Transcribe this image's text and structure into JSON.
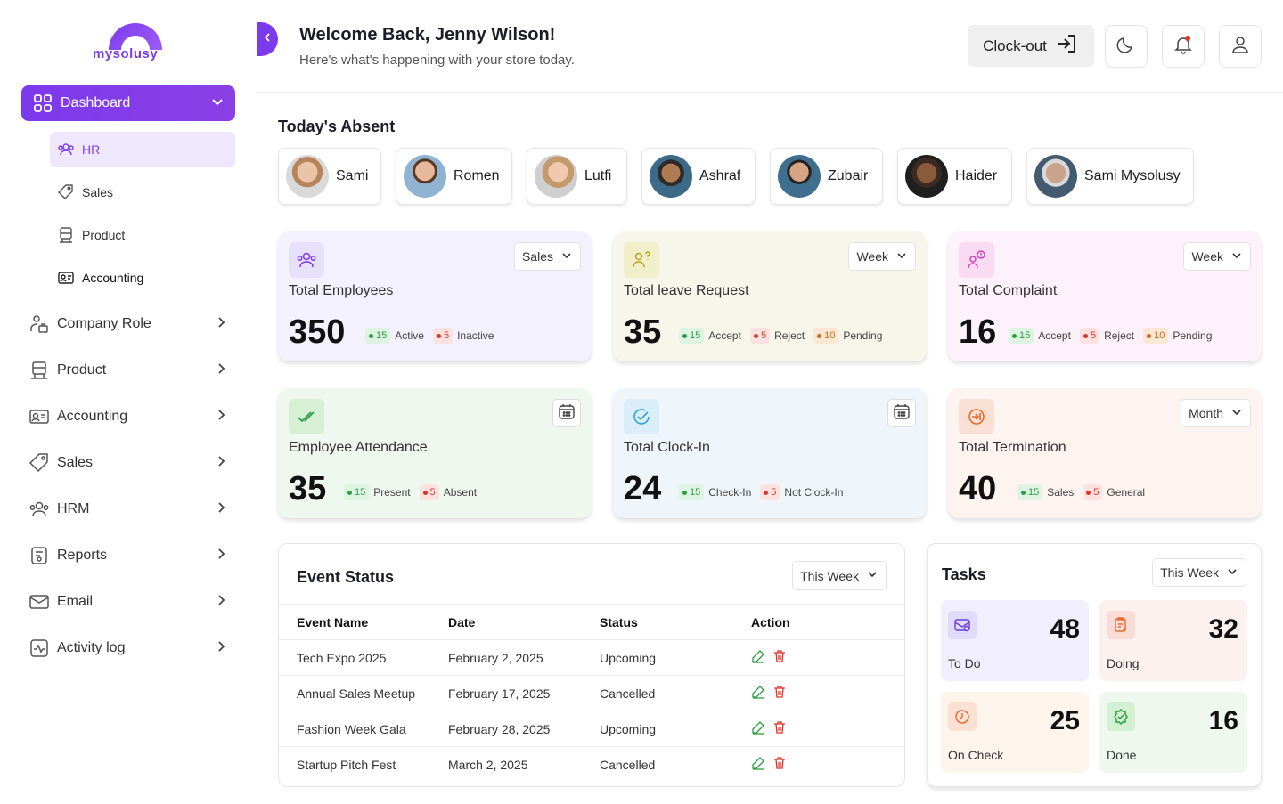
{
  "brand": {
    "name": "mysolusy"
  },
  "sidebar": {
    "dashboard": "Dashboard",
    "subitems": [
      {
        "label": "HR",
        "icon": "users-icon"
      },
      {
        "label": "Sales",
        "icon": "tag-icon"
      },
      {
        "label": "Product",
        "icon": "product-icon"
      },
      {
        "label": "Accounting",
        "icon": "id-card-icon"
      }
    ],
    "items": [
      {
        "label": "Company Role",
        "icon": "company-role-icon"
      },
      {
        "label": "Product",
        "icon": "product-icon"
      },
      {
        "label": "Accounting",
        "icon": "id-card-icon"
      },
      {
        "label": "Sales",
        "icon": "tag-icon"
      },
      {
        "label": "HRM",
        "icon": "users-icon"
      },
      {
        "label": "Reports",
        "icon": "report-icon"
      },
      {
        "label": "Email",
        "icon": "mail-icon"
      },
      {
        "label": "Activity log",
        "icon": "activity-icon"
      }
    ]
  },
  "header": {
    "title": "Welcome Back, Jenny Wilson!",
    "subtitle": "Here's what's happening with your store today.",
    "clockout": "Clock-out"
  },
  "absent": {
    "title": "Today's Absent",
    "people": [
      "Sami",
      "Romen",
      "Lutfi",
      "Ashraf",
      "Zubair",
      "Haider",
      "Sami Mysolusy"
    ]
  },
  "cards": [
    {
      "title": "Total Employees",
      "value": "350",
      "select": "Sales",
      "badges": [
        {
          "n": "15",
          "label": "Active"
        },
        {
          "n": "5",
          "label": "Inactive"
        }
      ]
    },
    {
      "title": "Total leave Request",
      "value": "35",
      "select": "Week",
      "badges": [
        {
          "n": "15",
          "label": "Accept"
        },
        {
          "n": "5",
          "label": "Reject"
        },
        {
          "n": "10",
          "label": "Pending"
        }
      ]
    },
    {
      "title": "Total Complaint",
      "value": "16",
      "select": "Week",
      "badges": [
        {
          "n": "15",
          "label": "Accept"
        },
        {
          "n": "5",
          "label": "Reject"
        },
        {
          "n": "10",
          "label": "Pending"
        }
      ]
    },
    {
      "title": "Employee Attendance",
      "value": "35",
      "badges": [
        {
          "n": "15",
          "label": "Present"
        },
        {
          "n": "5",
          "label": "Absent"
        }
      ]
    },
    {
      "title": "Total Clock-In",
      "value": "24",
      "badges": [
        {
          "n": "15",
          "label": "Check-In"
        },
        {
          "n": "5",
          "label": "Not Clock-In"
        }
      ]
    },
    {
      "title": "Total Termination",
      "value": "40",
      "select": "Month",
      "badges": [
        {
          "n": "15",
          "label": "Sales"
        },
        {
          "n": "5",
          "label": "General"
        }
      ]
    }
  ],
  "events": {
    "title": "Event Status",
    "filter": "This Week",
    "columns": [
      "Event Name",
      "Date",
      "Status",
      "Action"
    ],
    "rows": [
      {
        "name": "Tech Expo 2025",
        "date": "February 2, 2025",
        "status": "Upcoming"
      },
      {
        "name": "Annual Sales Meetup",
        "date": "February 17, 2025",
        "status": "Cancelled"
      },
      {
        "name": "Fashion Week Gala",
        "date": "February 28, 2025",
        "status": "Upcoming"
      },
      {
        "name": "Startup Pitch Fest",
        "date": "March 2, 2025",
        "status": "Cancelled"
      }
    ]
  },
  "tasks": {
    "title": "Tasks",
    "filter": "This Week",
    "items": [
      {
        "label": "To Do",
        "value": "48"
      },
      {
        "label": "Doing",
        "value": "32"
      },
      {
        "label": "On Check",
        "value": "25"
      },
      {
        "label": "Done",
        "value": "16"
      }
    ]
  },
  "colors": {
    "accent": "#7c3aed",
    "green": "#2c9d42",
    "red": "#e0322b",
    "orange": "#c66d1f"
  }
}
